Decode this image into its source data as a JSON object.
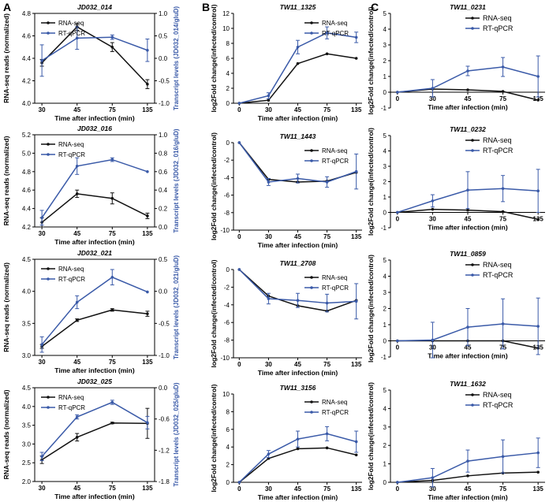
{
  "panel_letters": [
    "A",
    "B",
    "C"
  ],
  "colors": {
    "rna": "#111111",
    "qpcr": "#3a5aa8"
  },
  "chart_data": [
    {
      "id": "A1",
      "type": "line",
      "panel": "A",
      "title": "JD032_014",
      "xlabel": "Time after infection (min)",
      "ylabel": "RNA-seq reads (normalized)",
      "y2label": "Transcript levels (JD032_014/gluD)",
      "categories": [
        "30",
        "45",
        "75",
        "135"
      ],
      "ylim": [
        4.0,
        4.8
      ],
      "yticks": [
        "4.0",
        "4.2",
        "4.4",
        "4.6",
        "4.8"
      ],
      "y2lim": [
        -1.0,
        1.0
      ],
      "y2ticks": [
        "-1.0",
        "-0.5",
        "0.0",
        "0.5",
        "1.0"
      ],
      "legend": [
        "RNA-seq",
        "RT-qPCR"
      ],
      "series": [
        {
          "name": "RNA-seq",
          "axis": "left",
          "values": [
            4.36,
            4.68,
            4.5,
            4.17
          ],
          "errors": [
            0.03,
            0.03,
            0.04,
            0.04
          ]
        },
        {
          "name": "RT-qPCR",
          "axis": "right",
          "values": [
            -0.05,
            0.45,
            0.47,
            0.18
          ],
          "errors": [
            0.35,
            0.25,
            0.05,
            0.25
          ]
        }
      ]
    },
    {
      "id": "A2",
      "type": "line",
      "panel": "A",
      "title": "JD032_016",
      "xlabel": "Time after infection (min)",
      "ylabel": "RNA-seq reads (normalized)",
      "y2label": "Transcript levels (JD032_016/gluD)",
      "categories": [
        "30",
        "45",
        "75",
        "135"
      ],
      "ylim": [
        4.2,
        5.2
      ],
      "yticks": [
        "4.2",
        "4.4",
        "4.6",
        "4.8",
        "5.0",
        "5.2"
      ],
      "y2lim": [
        0.0,
        1.0
      ],
      "y2ticks": [
        "0.0",
        "0.2",
        "0.4",
        "0.6",
        "0.8",
        "1.0"
      ],
      "legend": [
        "RNA-seq",
        "RT-qPCR"
      ],
      "series": [
        {
          "name": "RNA-seq",
          "axis": "left",
          "values": [
            4.25,
            4.56,
            4.51,
            4.32
          ],
          "errors": [
            0.05,
            0.04,
            0.06,
            0.03
          ]
        },
        {
          "name": "RT-qPCR",
          "axis": "right",
          "values": [
            0.1,
            0.66,
            0.73,
            0.6
          ],
          "errors": [
            0.08,
            0.09,
            0.02,
            0.0
          ]
        }
      ]
    },
    {
      "id": "A3",
      "type": "line",
      "panel": "A",
      "title": "JD032_021",
      "xlabel": "Time after infection (min)",
      "ylabel": "RNA-seq reads (normalized)",
      "y2label": "Transcript levels (JD032_021/gluD)",
      "categories": [
        "30",
        "45",
        "75",
        "135"
      ],
      "ylim": [
        3.0,
        4.5
      ],
      "yticks": [
        "3.0",
        "3.5",
        "4.0",
        "4.5"
      ],
      "y2lim": [
        -1.0,
        0.5
      ],
      "y2ticks": [
        "-1.0",
        "-0.5",
        "0.0",
        "0.5"
      ],
      "legend": [
        "RNA-seq",
        "RT-qPCR"
      ],
      "series": [
        {
          "name": "RNA-seq",
          "axis": "left",
          "values": [
            3.14,
            3.55,
            3.71,
            3.65
          ],
          "errors": [
            0.03,
            0.02,
            0.02,
            0.04
          ]
        },
        {
          "name": "RT-qPCR",
          "axis": "right",
          "values": [
            -0.83,
            -0.17,
            0.22,
            -0.01
          ],
          "errors": [
            0.12,
            0.1,
            0.12,
            0.0
          ]
        }
      ]
    },
    {
      "id": "A4",
      "type": "line",
      "panel": "A",
      "title": "JD032_025",
      "xlabel": "Time after infection (min)",
      "ylabel": "RNA-seq reads (normalized)",
      "y2label": "Transcript levels (JD032_025/gluD)",
      "categories": [
        "30",
        "45",
        "75",
        "135"
      ],
      "ylim": [
        2.0,
        4.5
      ],
      "yticks": [
        "2.0",
        "2.5",
        "3.0",
        "3.5",
        "4.0",
        "4.5"
      ],
      "y2lim": [
        -1.8,
        0.0
      ],
      "y2ticks": [
        "-1.8",
        "-1.2",
        "-0.6",
        "0.0"
      ],
      "legend": [
        "RNA-seq",
        "RT-qPCR"
      ],
      "series": [
        {
          "name": "RNA-seq",
          "axis": "left",
          "values": [
            2.58,
            3.18,
            3.56,
            3.55
          ],
          "errors": [
            0.1,
            0.1,
            0.02,
            0.4
          ]
        },
        {
          "name": "RT-qPCR",
          "axis": "right",
          "values": [
            -1.32,
            -0.56,
            -0.28,
            -0.67
          ],
          "errors": [
            0.08,
            0.04,
            0.04,
            0.12
          ]
        }
      ]
    },
    {
      "id": "B1",
      "type": "line",
      "panel": "B",
      "title": "TW11_1325",
      "xlabel": "Time after infection (min)",
      "ylabel": "log2Fold change(infected/control)",
      "categories": [
        "0",
        "30",
        "45",
        "75",
        "135"
      ],
      "ylim": [
        0,
        12
      ],
      "yticks": [
        "0",
        "2",
        "4",
        "6",
        "8",
        "10",
        "12"
      ],
      "legend": [
        "RNA-seq",
        "RT-qPCR"
      ],
      "series": [
        {
          "name": "RNA-seq",
          "values": [
            0,
            0.4,
            5.3,
            6.6,
            6.0
          ],
          "errors": [
            0,
            0,
            0,
            0,
            0
          ]
        },
        {
          "name": "RT-qPCR",
          "values": [
            0,
            1.0,
            7.5,
            9.4,
            8.8
          ],
          "errors": [
            0,
            0.4,
            0.9,
            0.8,
            0.7
          ]
        }
      ]
    },
    {
      "id": "B2",
      "type": "line",
      "panel": "B",
      "title": "TW11_1443",
      "xlabel": "",
      "ylabel": "log2Fold change(infected/control)",
      "categories": [
        "0",
        "30",
        "45",
        "75",
        "135"
      ],
      "ylim": [
        -10,
        0
      ],
      "yticks": [
        "-10",
        "-8",
        "-6",
        "-4",
        "-2",
        "0"
      ],
      "legend": [
        "RNA-seq",
        "RT-qPCR"
      ],
      "series": [
        {
          "name": "RNA-seq",
          "values": [
            0,
            -4.2,
            -4.5,
            -4.4,
            -3.4
          ],
          "errors": [
            0,
            0,
            0,
            0,
            0
          ]
        },
        {
          "name": "RT-qPCR",
          "values": [
            0,
            -4.5,
            -4.1,
            -4.5,
            -3.3
          ],
          "errors": [
            0,
            0.4,
            0.5,
            0.6,
            2.0
          ]
        }
      ]
    },
    {
      "id": "B3",
      "type": "line",
      "panel": "B",
      "title": "TW11_2708",
      "xlabel": "",
      "ylabel": "log2Fold change(infected/control)",
      "categories": [
        "0",
        "30",
        "45",
        "75",
        "135"
      ],
      "ylim": [
        -10,
        0
      ],
      "yticks": [
        "-10",
        "-8",
        "-6",
        "-4",
        "-2",
        "0"
      ],
      "legend": [
        "RNA-seq",
        "RT-qPCR"
      ],
      "series": [
        {
          "name": "RNA-seq",
          "values": [
            0,
            -3.0,
            -4.1,
            -4.7,
            -3.5
          ],
          "errors": [
            0,
            0,
            0,
            0,
            0
          ]
        },
        {
          "name": "RT-qPCR",
          "values": [
            0,
            -3.3,
            -3.5,
            -3.8,
            -3.6
          ],
          "errors": [
            0,
            0.6,
            0.8,
            1.0,
            2.0
          ]
        }
      ]
    },
    {
      "id": "B4",
      "type": "line",
      "panel": "B",
      "title": "TW11_3156",
      "xlabel": "",
      "ylabel": "log2Fold change(infected/control)",
      "categories": [
        "0",
        "30",
        "45",
        "75",
        "135"
      ],
      "ylim": [
        0,
        10
      ],
      "yticks": [
        "0",
        "2",
        "4",
        "6",
        "8",
        "10"
      ],
      "legend": [
        "RNA-seq",
        "RT-qPCR"
      ],
      "series": [
        {
          "name": "RNA-seq",
          "values": [
            0,
            2.7,
            3.8,
            3.9,
            3.1
          ],
          "errors": [
            0,
            0,
            0,
            0,
            0
          ]
        },
        {
          "name": "RT-qPCR",
          "values": [
            0,
            3.2,
            4.9,
            5.5,
            4.6
          ],
          "errors": [
            0,
            0.4,
            0.9,
            0.8,
            1.2
          ]
        }
      ]
    },
    {
      "id": "C1",
      "type": "line",
      "panel": "C",
      "title": "TW11_0231",
      "xlabel": "Time after infection (min)",
      "ylabel": "log2Fold change(infected/control)",
      "categories": [
        "0",
        "30",
        "45",
        "75",
        "135"
      ],
      "ylim": [
        -1,
        5
      ],
      "yticks": [
        "-1",
        "0",
        "1",
        "2",
        "3",
        "4",
        "5"
      ],
      "legend": [
        "RNA-seq",
        "RT-qPCR"
      ],
      "series": [
        {
          "name": "RNA-seq",
          "values": [
            0,
            0.2,
            0.15,
            0.05,
            -0.5
          ],
          "errors": [
            0,
            0,
            0,
            0,
            0
          ]
        },
        {
          "name": "RT-qPCR",
          "values": [
            0,
            0.25,
            1.35,
            1.6,
            1.0
          ],
          "errors": [
            0,
            0.55,
            0.3,
            0.6,
            1.3
          ]
        }
      ]
    },
    {
      "id": "C2",
      "type": "line",
      "panel": "C",
      "title": "TW11_0232",
      "xlabel": "Time after infection (min)",
      "ylabel": "log2Fold change(infected/control)",
      "categories": [
        "0",
        "30",
        "45",
        "75",
        "135"
      ],
      "ylim": [
        -1,
        5
      ],
      "yticks": [
        "-1",
        "0",
        "1",
        "2",
        "3",
        "4",
        "5"
      ],
      "legend": [
        "RNA-seq",
        "RT-qPCR"
      ],
      "series": [
        {
          "name": "RNA-seq",
          "values": [
            0,
            0.2,
            0.15,
            0.05,
            -0.45
          ],
          "errors": [
            0,
            0,
            0,
            0,
            0
          ]
        },
        {
          "name": "RT-qPCR",
          "values": [
            0,
            0.75,
            1.45,
            1.55,
            1.4
          ],
          "errors": [
            0,
            0.4,
            1.2,
            0.85,
            1.4
          ]
        }
      ]
    },
    {
      "id": "C3",
      "type": "line",
      "panel": "C",
      "title": "TW11_0859",
      "xlabel": "Time after infection (min)",
      "ylabel": "log2Fold change(infected/control)",
      "categories": [
        "0",
        "30",
        "45",
        "75",
        "135"
      ],
      "ylim": [
        -1,
        5
      ],
      "yticks": [
        "-1",
        "0",
        "1",
        "2",
        "3",
        "4",
        "5"
      ],
      "legend": [
        "RNA-seq",
        "RT-qPCR"
      ],
      "series": [
        {
          "name": "RNA-seq",
          "values": [
            0,
            0.0,
            0.0,
            0.0,
            -0.45
          ],
          "errors": [
            0,
            0,
            0,
            0,
            0
          ]
        },
        {
          "name": "RT-qPCR",
          "values": [
            0,
            0.05,
            0.85,
            1.05,
            0.9
          ],
          "errors": [
            0,
            1.1,
            1.15,
            1.55,
            1.75
          ]
        }
      ]
    },
    {
      "id": "C4",
      "type": "line",
      "panel": "C",
      "title": "TW11_1632",
      "xlabel": "Time after infection (min)",
      "ylabel": "log2Fold change(infected/control)",
      "categories": [
        "0",
        "30",
        "45",
        "75",
        "135"
      ],
      "ylim": [
        0,
        5
      ],
      "yticks": [
        "0",
        "1",
        "2",
        "3",
        "4",
        "5"
      ],
      "legend": [
        "RNA-seq",
        "RT-qPCR"
      ],
      "series": [
        {
          "name": "RNA-seq",
          "values": [
            0,
            0.1,
            0.35,
            0.5,
            0.55
          ],
          "errors": [
            0,
            0,
            0,
            0,
            0
          ]
        },
        {
          "name": "RT-qPCR",
          "values": [
            0,
            0.25,
            1.15,
            1.4,
            1.6
          ],
          "errors": [
            0,
            0.5,
            0.6,
            0.9,
            0.8
          ]
        }
      ]
    }
  ]
}
